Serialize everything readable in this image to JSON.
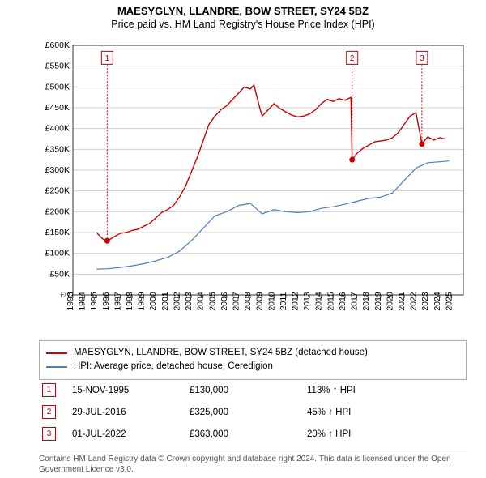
{
  "title": "MAESYGLYN, LLANDRE, BOW STREET, SY24 5BZ",
  "subtitle": "Price paid vs. HM Land Registry's House Price Index (HPI)",
  "chart": {
    "type": "line",
    "background_color": "#ffffff",
    "grid_color": "#d0d0d0",
    "x_axis": {
      "min": 1993,
      "max": 2026,
      "ticks": [
        1993,
        1994,
        1995,
        1996,
        1997,
        1998,
        1999,
        2000,
        2001,
        2002,
        2003,
        2004,
        2005,
        2006,
        2007,
        2008,
        2009,
        2010,
        2011,
        2012,
        2013,
        2014,
        2015,
        2016,
        2017,
        2018,
        2019,
        2020,
        2021,
        2022,
        2023,
        2024,
        2025
      ]
    },
    "y_axis": {
      "min": 0,
      "max": 600000,
      "tick_step": 50000,
      "tick_prefix": "£",
      "tick_suffix": "K",
      "tick_divisor": 1000
    },
    "series": [
      {
        "name": "property",
        "label": "MAESYGLYN, LLANDRE, BOW STREET, SY24 5BZ (detached house)",
        "color": "#cc0000",
        "line_width": 1.4,
        "points": [
          [
            1995.0,
            150000
          ],
          [
            1995.5,
            135000
          ],
          [
            1995.9,
            130000
          ],
          [
            1996.5,
            140000
          ],
          [
            1997.0,
            148000
          ],
          [
            1997.5,
            150000
          ],
          [
            1998.0,
            155000
          ],
          [
            1998.5,
            158000
          ],
          [
            1999.0,
            165000
          ],
          [
            1999.5,
            172000
          ],
          [
            2000.0,
            185000
          ],
          [
            2000.5,
            198000
          ],
          [
            2001.0,
            205000
          ],
          [
            2001.5,
            215000
          ],
          [
            2002.0,
            235000
          ],
          [
            2002.5,
            260000
          ],
          [
            2003.0,
            295000
          ],
          [
            2003.5,
            330000
          ],
          [
            2004.0,
            370000
          ],
          [
            2004.5,
            410000
          ],
          [
            2005.0,
            430000
          ],
          [
            2005.5,
            445000
          ],
          [
            2006.0,
            455000
          ],
          [
            2006.5,
            470000
          ],
          [
            2007.0,
            485000
          ],
          [
            2007.5,
            500000
          ],
          [
            2008.0,
            495000
          ],
          [
            2008.3,
            505000
          ],
          [
            2008.7,
            460000
          ],
          [
            2009.0,
            430000
          ],
          [
            2009.5,
            445000
          ],
          [
            2010.0,
            460000
          ],
          [
            2010.5,
            448000
          ],
          [
            2011.0,
            440000
          ],
          [
            2011.5,
            432000
          ],
          [
            2012.0,
            428000
          ],
          [
            2012.5,
            430000
          ],
          [
            2013.0,
            435000
          ],
          [
            2013.5,
            445000
          ],
          [
            2014.0,
            460000
          ],
          [
            2014.5,
            470000
          ],
          [
            2015.0,
            465000
          ],
          [
            2015.5,
            472000
          ],
          [
            2016.0,
            468000
          ],
          [
            2016.5,
            475000
          ],
          [
            2016.6,
            325000
          ],
          [
            2017.0,
            340000
          ],
          [
            2017.5,
            352000
          ],
          [
            2018.0,
            360000
          ],
          [
            2018.5,
            368000
          ],
          [
            2019.0,
            370000
          ],
          [
            2019.5,
            372000
          ],
          [
            2020.0,
            378000
          ],
          [
            2020.5,
            390000
          ],
          [
            2021.0,
            410000
          ],
          [
            2021.5,
            430000
          ],
          [
            2022.0,
            438000
          ],
          [
            2022.5,
            363000
          ],
          [
            2023.0,
            380000
          ],
          [
            2023.5,
            372000
          ],
          [
            2024.0,
            378000
          ],
          [
            2024.5,
            375000
          ]
        ]
      },
      {
        "name": "hpi",
        "label": "HPI: Average price, detached house, Ceredigion",
        "color": "#4a7fc1",
        "line_width": 1.2,
        "points": [
          [
            1995.0,
            62000
          ],
          [
            1996.0,
            63000
          ],
          [
            1997.0,
            66000
          ],
          [
            1998.0,
            70000
          ],
          [
            1999.0,
            75000
          ],
          [
            2000.0,
            82000
          ],
          [
            2001.0,
            90000
          ],
          [
            2002.0,
            105000
          ],
          [
            2003.0,
            130000
          ],
          [
            2004.0,
            160000
          ],
          [
            2005.0,
            190000
          ],
          [
            2006.0,
            200000
          ],
          [
            2007.0,
            215000
          ],
          [
            2008.0,
            220000
          ],
          [
            2009.0,
            195000
          ],
          [
            2010.0,
            205000
          ],
          [
            2011.0,
            200000
          ],
          [
            2012.0,
            198000
          ],
          [
            2013.0,
            200000
          ],
          [
            2014.0,
            208000
          ],
          [
            2015.0,
            212000
          ],
          [
            2016.0,
            218000
          ],
          [
            2017.0,
            225000
          ],
          [
            2018.0,
            232000
          ],
          [
            2019.0,
            235000
          ],
          [
            2020.0,
            245000
          ],
          [
            2021.0,
            275000
          ],
          [
            2022.0,
            305000
          ],
          [
            2023.0,
            318000
          ],
          [
            2024.0,
            320000
          ],
          [
            2024.8,
            322000
          ]
        ]
      }
    ],
    "markers": [
      {
        "id": "1",
        "x": 1995.9,
        "y": 130000,
        "box_y": 570000
      },
      {
        "id": "2",
        "x": 2016.6,
        "y": 325000,
        "box_y": 570000
      },
      {
        "id": "3",
        "x": 2022.5,
        "y": 363000,
        "box_y": 570000
      }
    ]
  },
  "legend": {
    "series_0": "MAESYGLYN, LLANDRE, BOW STREET, SY24 5BZ (detached house)",
    "series_1": "HPI: Average price, detached house, Ceredigion"
  },
  "sales": [
    {
      "id": "1",
      "date": "15-NOV-1995",
      "price": "£130,000",
      "pct": "113% ↑ HPI"
    },
    {
      "id": "2",
      "date": "29-JUL-2016",
      "price": "£325,000",
      "pct": "45% ↑ HPI"
    },
    {
      "id": "3",
      "date": "01-JUL-2022",
      "price": "£363,000",
      "pct": "20% ↑ HPI"
    }
  ],
  "footer": "Contains HM Land Registry data © Crown copyright and database right 2024. This data is licensed under the Open Government Licence v3.0."
}
